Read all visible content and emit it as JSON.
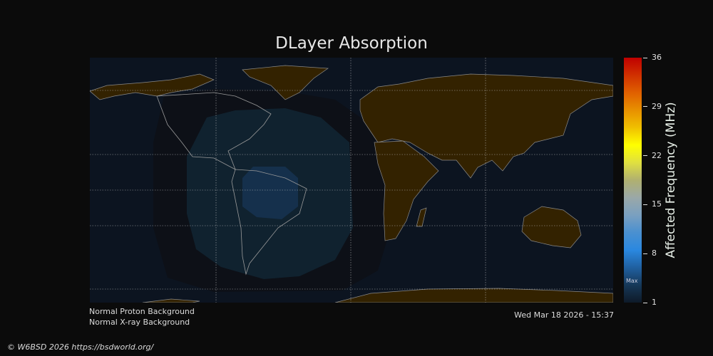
{
  "title": "DLayer Absorption",
  "status": {
    "proton": "Normal Proton Background",
    "xray": "Normal X-ray Background",
    "timestamp": "Wed Mar 18 2026 - 15:37"
  },
  "footer": "© W6BSD 2026 https://bsdworld.org/",
  "colorbar": {
    "label": "Affected Frequency (MHz)",
    "ticks": [
      "36",
      "29",
      "22",
      "15",
      "8",
      "1"
    ],
    "range": [
      1,
      36
    ],
    "max_marker": "Max",
    "colors": [
      "#c00000",
      "#d03000",
      "#e06000",
      "#e89000",
      "#f0c000",
      "#ffff00",
      "#e0e040",
      "#b0b070",
      "#9aa8a8",
      "#7aa0c0",
      "#4a90d0",
      "#2a88e0",
      "#2060a0",
      "#163858",
      "#0e1a28"
    ]
  },
  "map": {
    "land_color": "#332200",
    "ocean_color": "#0c1420",
    "absorption_colors": [
      "#0d1017",
      "#10222f",
      "#15304c"
    ]
  }
}
